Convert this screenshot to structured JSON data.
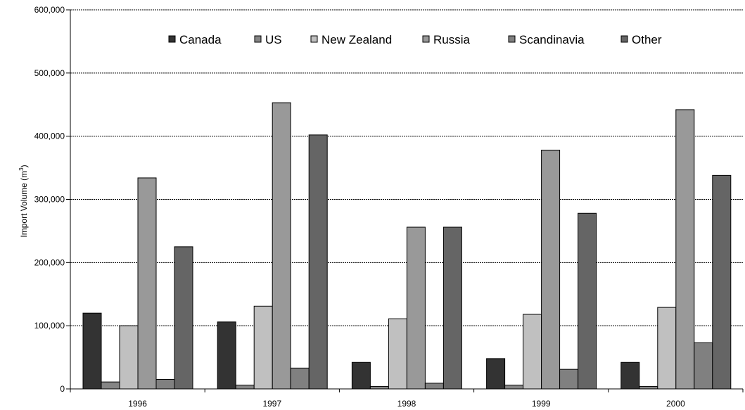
{
  "chart_data": {
    "type": "bar",
    "categories": [
      "1996",
      "1997",
      "1998",
      "1999",
      "2000"
    ],
    "series": [
      {
        "name": "Canada",
        "color": "#333333",
        "values": [
          120000,
          106000,
          42000,
          48000,
          42000
        ]
      },
      {
        "name": "US",
        "color": "#858585",
        "values": [
          11000,
          6000,
          4000,
          6000,
          4000
        ]
      },
      {
        "name": "New Zealand",
        "color": "#c0c0c0",
        "values": [
          100000,
          131000,
          111000,
          118000,
          129000
        ]
      },
      {
        "name": "Russia",
        "color": "#999999",
        "values": [
          334000,
          453000,
          256000,
          378000,
          442000
        ]
      },
      {
        "name": "Scandinavia",
        "color": "#808080",
        "values": [
          15000,
          33000,
          9000,
          31000,
          73000
        ]
      },
      {
        "name": "Other",
        "color": "#656565",
        "values": [
          225000,
          402000,
          256000,
          278000,
          338000
        ]
      }
    ],
    "ylabel": "Import Volume (m",
    "ylabel_sup": "3",
    "ylabel_close": ")",
    "ylim": [
      0,
      600000
    ],
    "yticks": [
      "0",
      "100,000",
      "200,000",
      "300,000",
      "400,000",
      "500,000",
      "600,000"
    ],
    "ytick_values": [
      0,
      100000,
      200000,
      300000,
      400000,
      500000,
      600000
    ],
    "grid": true,
    "legend_position": "top-center"
  }
}
